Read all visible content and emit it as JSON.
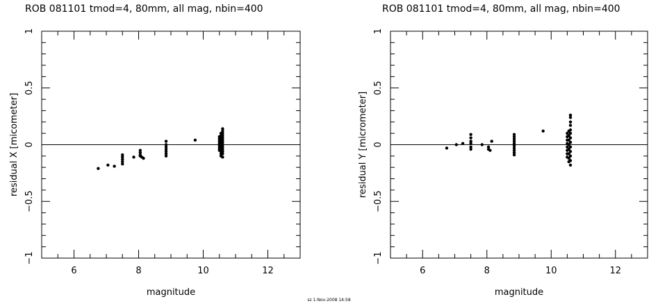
{
  "chart_data": [
    {
      "type": "scatter",
      "title": "ROB 081101 tmod=4, 80mm, all mag, nbin=400",
      "xlabel": "magnitude",
      "ylabel": "residual X [micometer]",
      "xlim": [
        5,
        13
      ],
      "ylim": [
        -1,
        1
      ],
      "xticks": [
        6,
        8,
        10,
        12
      ],
      "yticks": [
        -1,
        -0.5,
        0,
        0.5,
        1
      ],
      "xtick_labels": [
        "6",
        "8",
        "10",
        "12"
      ],
      "ytick_labels": [
        "−1",
        "−0.5",
        "0",
        "0.5",
        "1"
      ],
      "grid": false,
      "zero_line": true,
      "points": [
        [
          6.75,
          -0.21
        ],
        [
          7.05,
          -0.18
        ],
        [
          7.25,
          -0.19
        ],
        [
          7.5,
          -0.09
        ],
        [
          7.5,
          -0.11
        ],
        [
          7.5,
          -0.13
        ],
        [
          7.5,
          -0.15
        ],
        [
          7.5,
          -0.17
        ],
        [
          7.85,
          -0.11
        ],
        [
          8.05,
          -0.05
        ],
        [
          8.05,
          -0.07
        ],
        [
          8.05,
          -0.09
        ],
        [
          8.05,
          -0.1
        ],
        [
          8.1,
          -0.11
        ],
        [
          8.15,
          -0.12
        ],
        [
          8.85,
          0.03
        ],
        [
          8.85,
          0.0
        ],
        [
          8.85,
          -0.02
        ],
        [
          8.85,
          -0.04
        ],
        [
          8.85,
          -0.06
        ],
        [
          8.85,
          -0.08
        ],
        [
          8.85,
          -0.1
        ],
        [
          9.75,
          0.04
        ],
        [
          10.5,
          0.07
        ],
        [
          10.5,
          0.05
        ],
        [
          10.5,
          0.03
        ],
        [
          10.5,
          0.01
        ],
        [
          10.5,
          -0.01
        ],
        [
          10.5,
          -0.03
        ],
        [
          10.5,
          -0.05
        ],
        [
          10.55,
          0.1
        ],
        [
          10.55,
          0.08
        ],
        [
          10.55,
          0.06
        ],
        [
          10.55,
          0.04
        ],
        [
          10.55,
          0.02
        ],
        [
          10.55,
          0.0
        ],
        [
          10.55,
          -0.02
        ],
        [
          10.55,
          -0.04
        ],
        [
          10.55,
          -0.06
        ],
        [
          10.55,
          -0.08
        ],
        [
          10.55,
          -0.1
        ],
        [
          10.6,
          0.14
        ],
        [
          10.6,
          0.12
        ],
        [
          10.6,
          0.1
        ],
        [
          10.6,
          0.08
        ],
        [
          10.6,
          0.06
        ],
        [
          10.6,
          0.04
        ],
        [
          10.6,
          0.02
        ],
        [
          10.6,
          0.0
        ],
        [
          10.6,
          -0.02
        ],
        [
          10.6,
          -0.04
        ],
        [
          10.6,
          -0.06
        ],
        [
          10.6,
          -0.08
        ],
        [
          10.6,
          -0.11
        ]
      ]
    },
    {
      "type": "scatter",
      "title": "ROB 081101 tmod=4, 80mm, all mag, nbin=400",
      "xlabel": "magnitude",
      "ylabel": "residual Y [micrometer]",
      "xlim": [
        5,
        13
      ],
      "ylim": [
        -1,
        1
      ],
      "xticks": [
        6,
        8,
        10,
        12
      ],
      "yticks": [
        -1,
        -0.5,
        0,
        0.5,
        1
      ],
      "xtick_labels": [
        "6",
        "8",
        "10",
        "12"
      ],
      "ytick_labels": [
        "−1",
        "−0.5",
        "0",
        "0.5",
        "1"
      ],
      "grid": false,
      "zero_line": true,
      "points": [
        [
          6.75,
          -0.03
        ],
        [
          7.05,
          0.0
        ],
        [
          7.25,
          0.01
        ],
        [
          7.5,
          0.09
        ],
        [
          7.5,
          0.06
        ],
        [
          7.5,
          0.03
        ],
        [
          7.5,
          0.01
        ],
        [
          7.5,
          -0.02
        ],
        [
          7.5,
          -0.04
        ],
        [
          7.85,
          0.0
        ],
        [
          8.05,
          -0.02
        ],
        [
          8.05,
          -0.04
        ],
        [
          8.1,
          -0.05
        ],
        [
          8.15,
          0.03
        ],
        [
          8.85,
          0.09
        ],
        [
          8.85,
          0.07
        ],
        [
          8.85,
          0.05
        ],
        [
          8.85,
          0.03
        ],
        [
          8.85,
          0.01
        ],
        [
          8.85,
          -0.01
        ],
        [
          8.85,
          -0.03
        ],
        [
          8.85,
          -0.05
        ],
        [
          8.85,
          -0.07
        ],
        [
          8.85,
          -0.09
        ],
        [
          9.75,
          0.12
        ],
        [
          10.5,
          0.1
        ],
        [
          10.5,
          0.07
        ],
        [
          10.5,
          0.04
        ],
        [
          10.5,
          0.01
        ],
        [
          10.5,
          -0.02
        ],
        [
          10.5,
          -0.05
        ],
        [
          10.5,
          -0.08
        ],
        [
          10.5,
          -0.11
        ],
        [
          10.55,
          0.12
        ],
        [
          10.55,
          0.08
        ],
        [
          10.55,
          0.04
        ],
        [
          10.55,
          0.0
        ],
        [
          10.55,
          -0.04
        ],
        [
          10.55,
          -0.08
        ],
        [
          10.55,
          -0.12
        ],
        [
          10.55,
          -0.15
        ],
        [
          10.6,
          0.26
        ],
        [
          10.6,
          0.24
        ],
        [
          10.6,
          0.2
        ],
        [
          10.6,
          0.17
        ],
        [
          10.6,
          0.13
        ],
        [
          10.6,
          0.1
        ],
        [
          10.6,
          0.06
        ],
        [
          10.6,
          0.02
        ],
        [
          10.6,
          -0.02
        ],
        [
          10.6,
          -0.06
        ],
        [
          10.6,
          -0.1
        ],
        [
          10.6,
          -0.14
        ],
        [
          10.6,
          -0.18
        ]
      ]
    }
  ],
  "footer": "sz 1-Nov-2008 14:58"
}
